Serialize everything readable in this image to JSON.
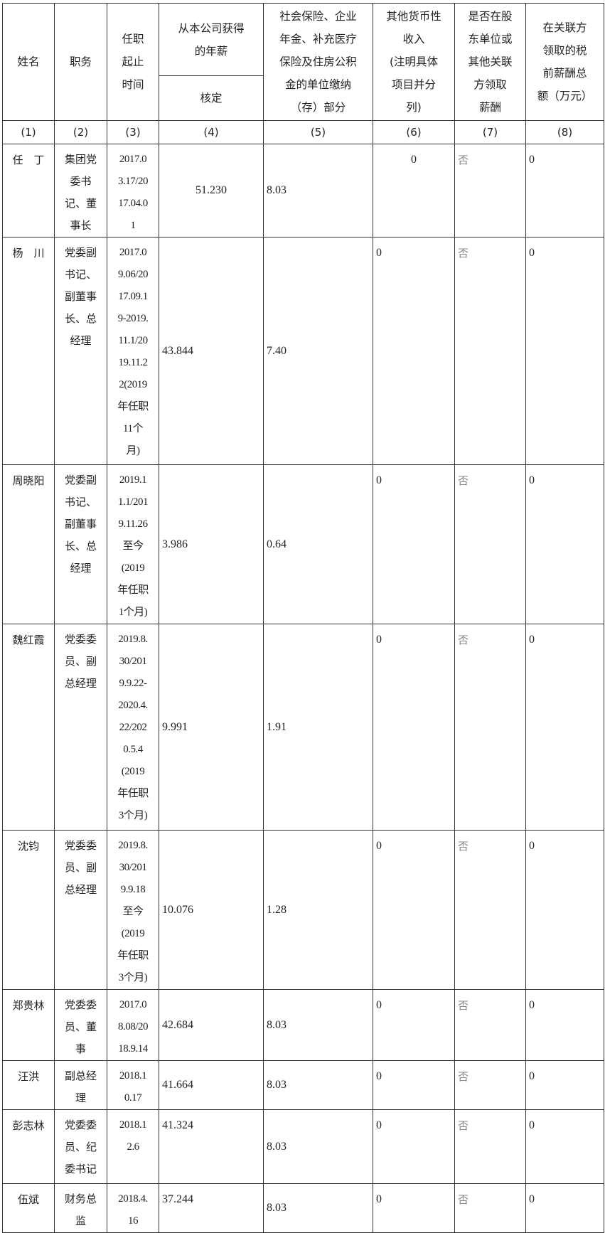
{
  "headers": {
    "name": "姓名",
    "position": "职务",
    "term": "任职\n起止\n时间",
    "salary": "从本公司获得\n的年薪",
    "salary_sub": "核定",
    "insurance": "社会保险、企业\n年金、补充医疗\n保险及住房公积\n金的单位缴纳\n（存）部分",
    "other_income": "其他货币性\n收入\n(注明具体\n项目并分\n列)",
    "related_pay": "是否在股\n东单位或\n其他关联\n方领取\n薪酬",
    "related_total": "在关联方\n领取的税\n前薪酬总\n额（万元）"
  },
  "index_row": [
    "(1)",
    "(2)",
    "(3)",
    "(4)",
    "(5)",
    "(6)",
    "(7)",
    "(8)"
  ],
  "rows": [
    {
      "name": "任　丁",
      "position": "集团党\n委书\n记、董\n事长",
      "term": "2017.0\n3.17/20\n17.04.0\n1",
      "salary": "51.230",
      "insurance": "8.03",
      "other": "0",
      "related": "否",
      "total": "0"
    },
    {
      "name": "杨　川",
      "position": "党委副\n书记、\n副董事\n长、总\n经理",
      "term": "2017.0\n9.06/20\n17.09.1\n9-2019.\n11.1/20\n19.11.2\n2(2019\n年任职\n11个\n月)",
      "salary": "43.844",
      "insurance": "7.40",
      "other": "0",
      "related": "否",
      "total": "0"
    },
    {
      "name": "周晓阳",
      "position": "党委副\n书记、\n副董事\n长、总\n经理",
      "term": "2019.1\n1.1/201\n9.11.26\n至今\n(2019\n年任职\n1个月)",
      "salary": "3.986",
      "insurance": "0.64",
      "other": "0",
      "related": "否",
      "total": "0"
    },
    {
      "name": "魏红霞",
      "position": "党委委\n员、副\n总经理",
      "term": "2019.8.\n30/201\n9.9.22-\n2020.4.\n22/202\n0.5.4\n(2019\n年任职\n3个月)",
      "salary": "9.991",
      "insurance": "1.91",
      "other": "0",
      "related": "否",
      "total": "0"
    },
    {
      "name": "沈钧",
      "position": "党委委\n员、副\n总经理",
      "term": "2019.8.\n30/201\n9.9.18\n至今\n(2019\n年任职\n3个月)",
      "salary": "10.076",
      "insurance": "1.28",
      "other": "0",
      "related": "否",
      "total": "0"
    },
    {
      "name": "郑贵林",
      "position": "党委委\n员、董\n事",
      "term": "2017.0\n8.08/20\n18.9.14",
      "salary": "42.684",
      "insurance": "8.03",
      "other": "0",
      "related": "否",
      "total": "0"
    },
    {
      "name": "汪洪",
      "position": "副总经\n理",
      "term": "2018.1\n0.17",
      "salary": "41.664",
      "insurance": "8.03",
      "other": "0",
      "related": "否",
      "total": "0"
    },
    {
      "name": "彭志林",
      "position": "党委委\n员、纪\n委书记",
      "term": "2018.1\n2.6",
      "salary": "41.324",
      "insurance": "8.03",
      "other": "0",
      "related": "否",
      "total": "0"
    },
    {
      "name": "伍斌",
      "position": "财务总\n监",
      "term": "2018.4.\n16",
      "salary": "37.244",
      "insurance": "8.03",
      "other": "0",
      "related": "否",
      "total": "0"
    }
  ]
}
